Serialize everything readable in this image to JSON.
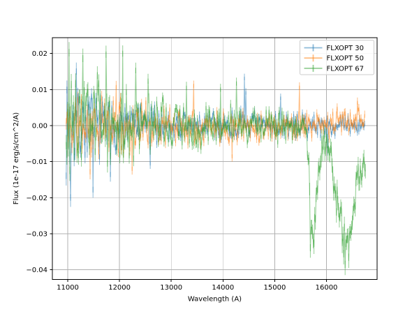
{
  "figure": {
    "background": "#ffffff",
    "kind": "matplotlib-errorbar-spectrum-plot"
  },
  "chart_data": {
    "type": "line",
    "title": "",
    "xlabel": "Wavelength (A)",
    "ylabel": "Flux (1e-17 erg/s/cm^2/A)",
    "xlim": [
      10703,
      16978
    ],
    "ylim": [
      -0.0427,
      0.0244
    ],
    "grid": true,
    "grid_color": "#b0b0b0",
    "spine_color": "#000000",
    "background": "#ffffff",
    "x_ticks": {
      "values": [
        11000,
        12000,
        13000,
        14000,
        15000,
        16000
      ],
      "labels": [
        "11000",
        "12000",
        "13000",
        "14000",
        "15000",
        "16000"
      ]
    },
    "y_ticks": {
      "values": [
        0.02,
        0.01,
        0.0,
        -0.01,
        -0.02,
        -0.03,
        -0.04
      ],
      "labels": [
        "0.02",
        "0.01",
        "0.00",
        "−0.01",
        "−0.02",
        "−0.03",
        "−0.04"
      ]
    },
    "legend": {
      "location": "upper right",
      "frame_color": "#cccccc",
      "frame_fill": "#ffffff",
      "frame_alpha": 0.8,
      "labels": [
        "FLXOPT 30",
        "FLXOPT 50",
        "FLXOPT 67"
      ]
    },
    "series": [
      {
        "name": "FLXOPT 30",
        "color": "#1f77b4",
        "alpha": 0.5,
        "style": "errorbar-line",
        "x_start": 10970,
        "x_end": 16750,
        "x_step": 14,
        "seed": 7,
        "baseline": [
          [
            10970,
            0
          ],
          [
            16750,
            0
          ]
        ],
        "amplitude": [
          [
            10970,
            0.016
          ],
          [
            11300,
            0.0125
          ],
          [
            11700,
            0.009
          ],
          [
            12300,
            0.007
          ],
          [
            13200,
            0.0058
          ],
          [
            14200,
            0.005
          ],
          [
            15200,
            0.0042
          ],
          [
            15900,
            0.0035
          ],
          [
            16750,
            0.0028
          ]
        ],
        "errorbar": [
          [
            10970,
            0.0018
          ],
          [
            12500,
            0.001
          ],
          [
            16750,
            0.0008
          ]
        ],
        "spikes": [
          [
            11048,
            -0.0208
          ],
          [
            11160,
            0.0158
          ],
          [
            11490,
            -0.0185
          ],
          [
            11830,
            -0.0142
          ],
          [
            12590,
            -0.011
          ],
          [
            14410,
            0.0135
          ],
          [
            14440,
            0.0095
          ],
          [
            15110,
            0.008
          ],
          [
            16020,
            -0.0075
          ]
        ]
      },
      {
        "name": "FLXOPT 50",
        "color": "#ff7f0e",
        "alpha": 0.5,
        "style": "errorbar-line",
        "x_start": 10970,
        "x_end": 16750,
        "x_step": 14,
        "seed": 11,
        "baseline": [
          [
            10970,
            0
          ],
          [
            16050,
            0
          ],
          [
            16250,
            0.0014
          ],
          [
            16500,
            0.002
          ],
          [
            16750,
            0.0018
          ]
        ],
        "amplitude": [
          [
            10970,
            0.0115
          ],
          [
            11600,
            0.01
          ],
          [
            12100,
            0.0085
          ],
          [
            12800,
            0.0068
          ],
          [
            13600,
            0.0058
          ],
          [
            14600,
            0.005
          ],
          [
            15600,
            0.0045
          ],
          [
            16750,
            0.0042
          ]
        ],
        "errorbar": [
          [
            10970,
            0.0016
          ],
          [
            12500,
            0.001
          ],
          [
            16750,
            0.001
          ]
        ],
        "spikes": [
          [
            11430,
            -0.0135
          ],
          [
            11940,
            0.0112
          ],
          [
            12240,
            -0.0125
          ],
          [
            13430,
            0.0115
          ],
          [
            14180,
            -0.009
          ],
          [
            15480,
            0.011
          ],
          [
            16600,
            0.0068
          ]
        ]
      },
      {
        "name": "FLXOPT 67",
        "color": "#2ca02c",
        "alpha": 0.5,
        "style": "errorbar-line",
        "x_start": 10970,
        "x_end": 16760,
        "x_step": 14,
        "seed": 3,
        "baseline": [
          [
            10970,
            0
          ],
          [
            15600,
            0
          ],
          [
            15650,
            -0.01
          ],
          [
            15705,
            -0.0285
          ],
          [
            15765,
            -0.031
          ],
          [
            15830,
            -0.014
          ],
          [
            15910,
            -0.0065
          ],
          [
            16010,
            -0.005
          ],
          [
            16090,
            -0.009
          ],
          [
            16170,
            -0.02
          ],
          [
            16270,
            -0.027
          ],
          [
            16370,
            -0.0335
          ],
          [
            16450,
            -0.031
          ],
          [
            16530,
            -0.021
          ],
          [
            16610,
            -0.0125
          ],
          [
            16760,
            -0.0085
          ]
        ],
        "amplitude": [
          [
            10970,
            0.019
          ],
          [
            11500,
            0.0155
          ],
          [
            12000,
            0.0125
          ],
          [
            12500,
            0.0095
          ],
          [
            13100,
            0.008
          ],
          [
            14100,
            0.0072
          ],
          [
            15100,
            0.0058
          ],
          [
            15650,
            0.006
          ],
          [
            16000,
            0.005
          ],
          [
            16200,
            0.007
          ],
          [
            16500,
            0.007
          ],
          [
            16760,
            0.005
          ]
        ],
        "errorbar": [
          [
            10970,
            0.002
          ],
          [
            13000,
            0.0012
          ],
          [
            15600,
            0.001
          ],
          [
            15700,
            0.002
          ],
          [
            16760,
            0.002
          ]
        ],
        "spikes": [
          [
            11025,
            0.0212
          ],
          [
            11290,
            0.0195
          ],
          [
            11740,
            0.0205
          ],
          [
            12055,
            0.0207
          ],
          [
            12310,
            0.016
          ],
          [
            12550,
            0.013
          ],
          [
            13290,
            0.011
          ],
          [
            13950,
            0.0105
          ],
          [
            14255,
            0.0122
          ],
          [
            15690,
            -0.0348
          ],
          [
            15995,
            -0.0028
          ],
          [
            16355,
            -0.0395
          ],
          [
            16425,
            -0.0375
          ]
        ]
      }
    ]
  }
}
